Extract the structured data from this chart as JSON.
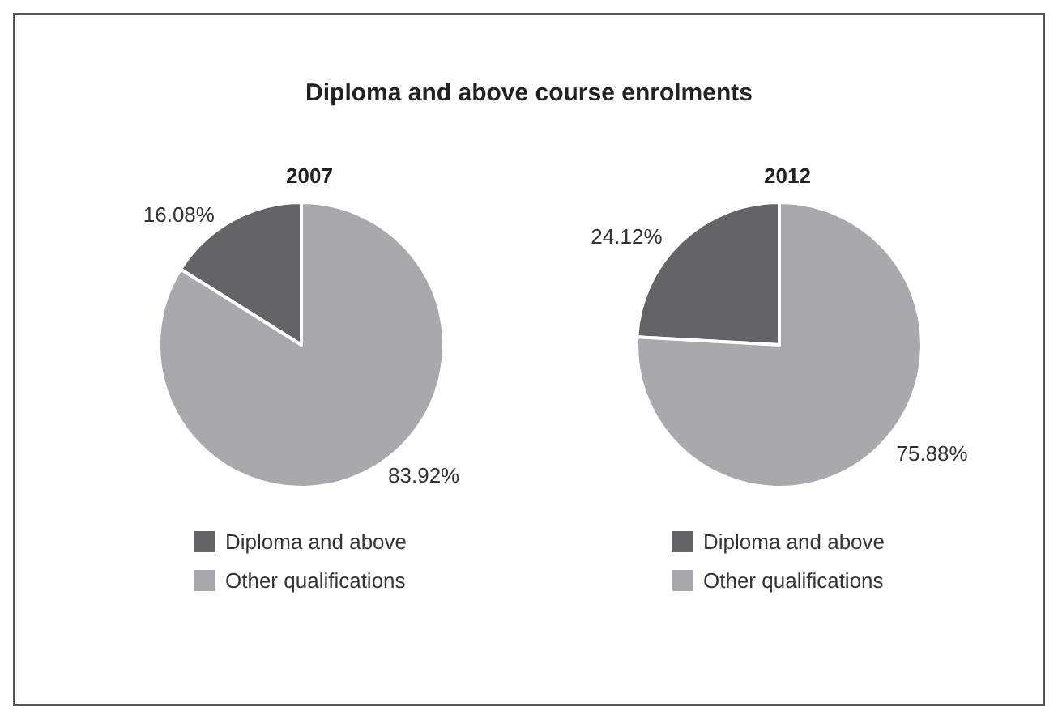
{
  "chart_data": [
    {
      "type": "pie",
      "title": "Diploma and above course enrolments",
      "subtitle": "2007",
      "categories": [
        "Diploma and above",
        "Other qualifications"
      ],
      "values": [
        16.08,
        83.92
      ],
      "colors": [
        "#636466",
        "#a7a9ac"
      ],
      "value_labels": [
        "16.08%",
        "83.92%"
      ],
      "legend": "bottom"
    },
    {
      "type": "pie",
      "subtitle": "2012",
      "categories": [
        "Diploma and above",
        "Other qualifications"
      ],
      "values": [
        24.12,
        75.88
      ],
      "colors": [
        "#636466",
        "#a7a9ac"
      ],
      "value_labels": [
        "24.12%",
        "75.88%"
      ],
      "legend": "bottom"
    }
  ]
}
